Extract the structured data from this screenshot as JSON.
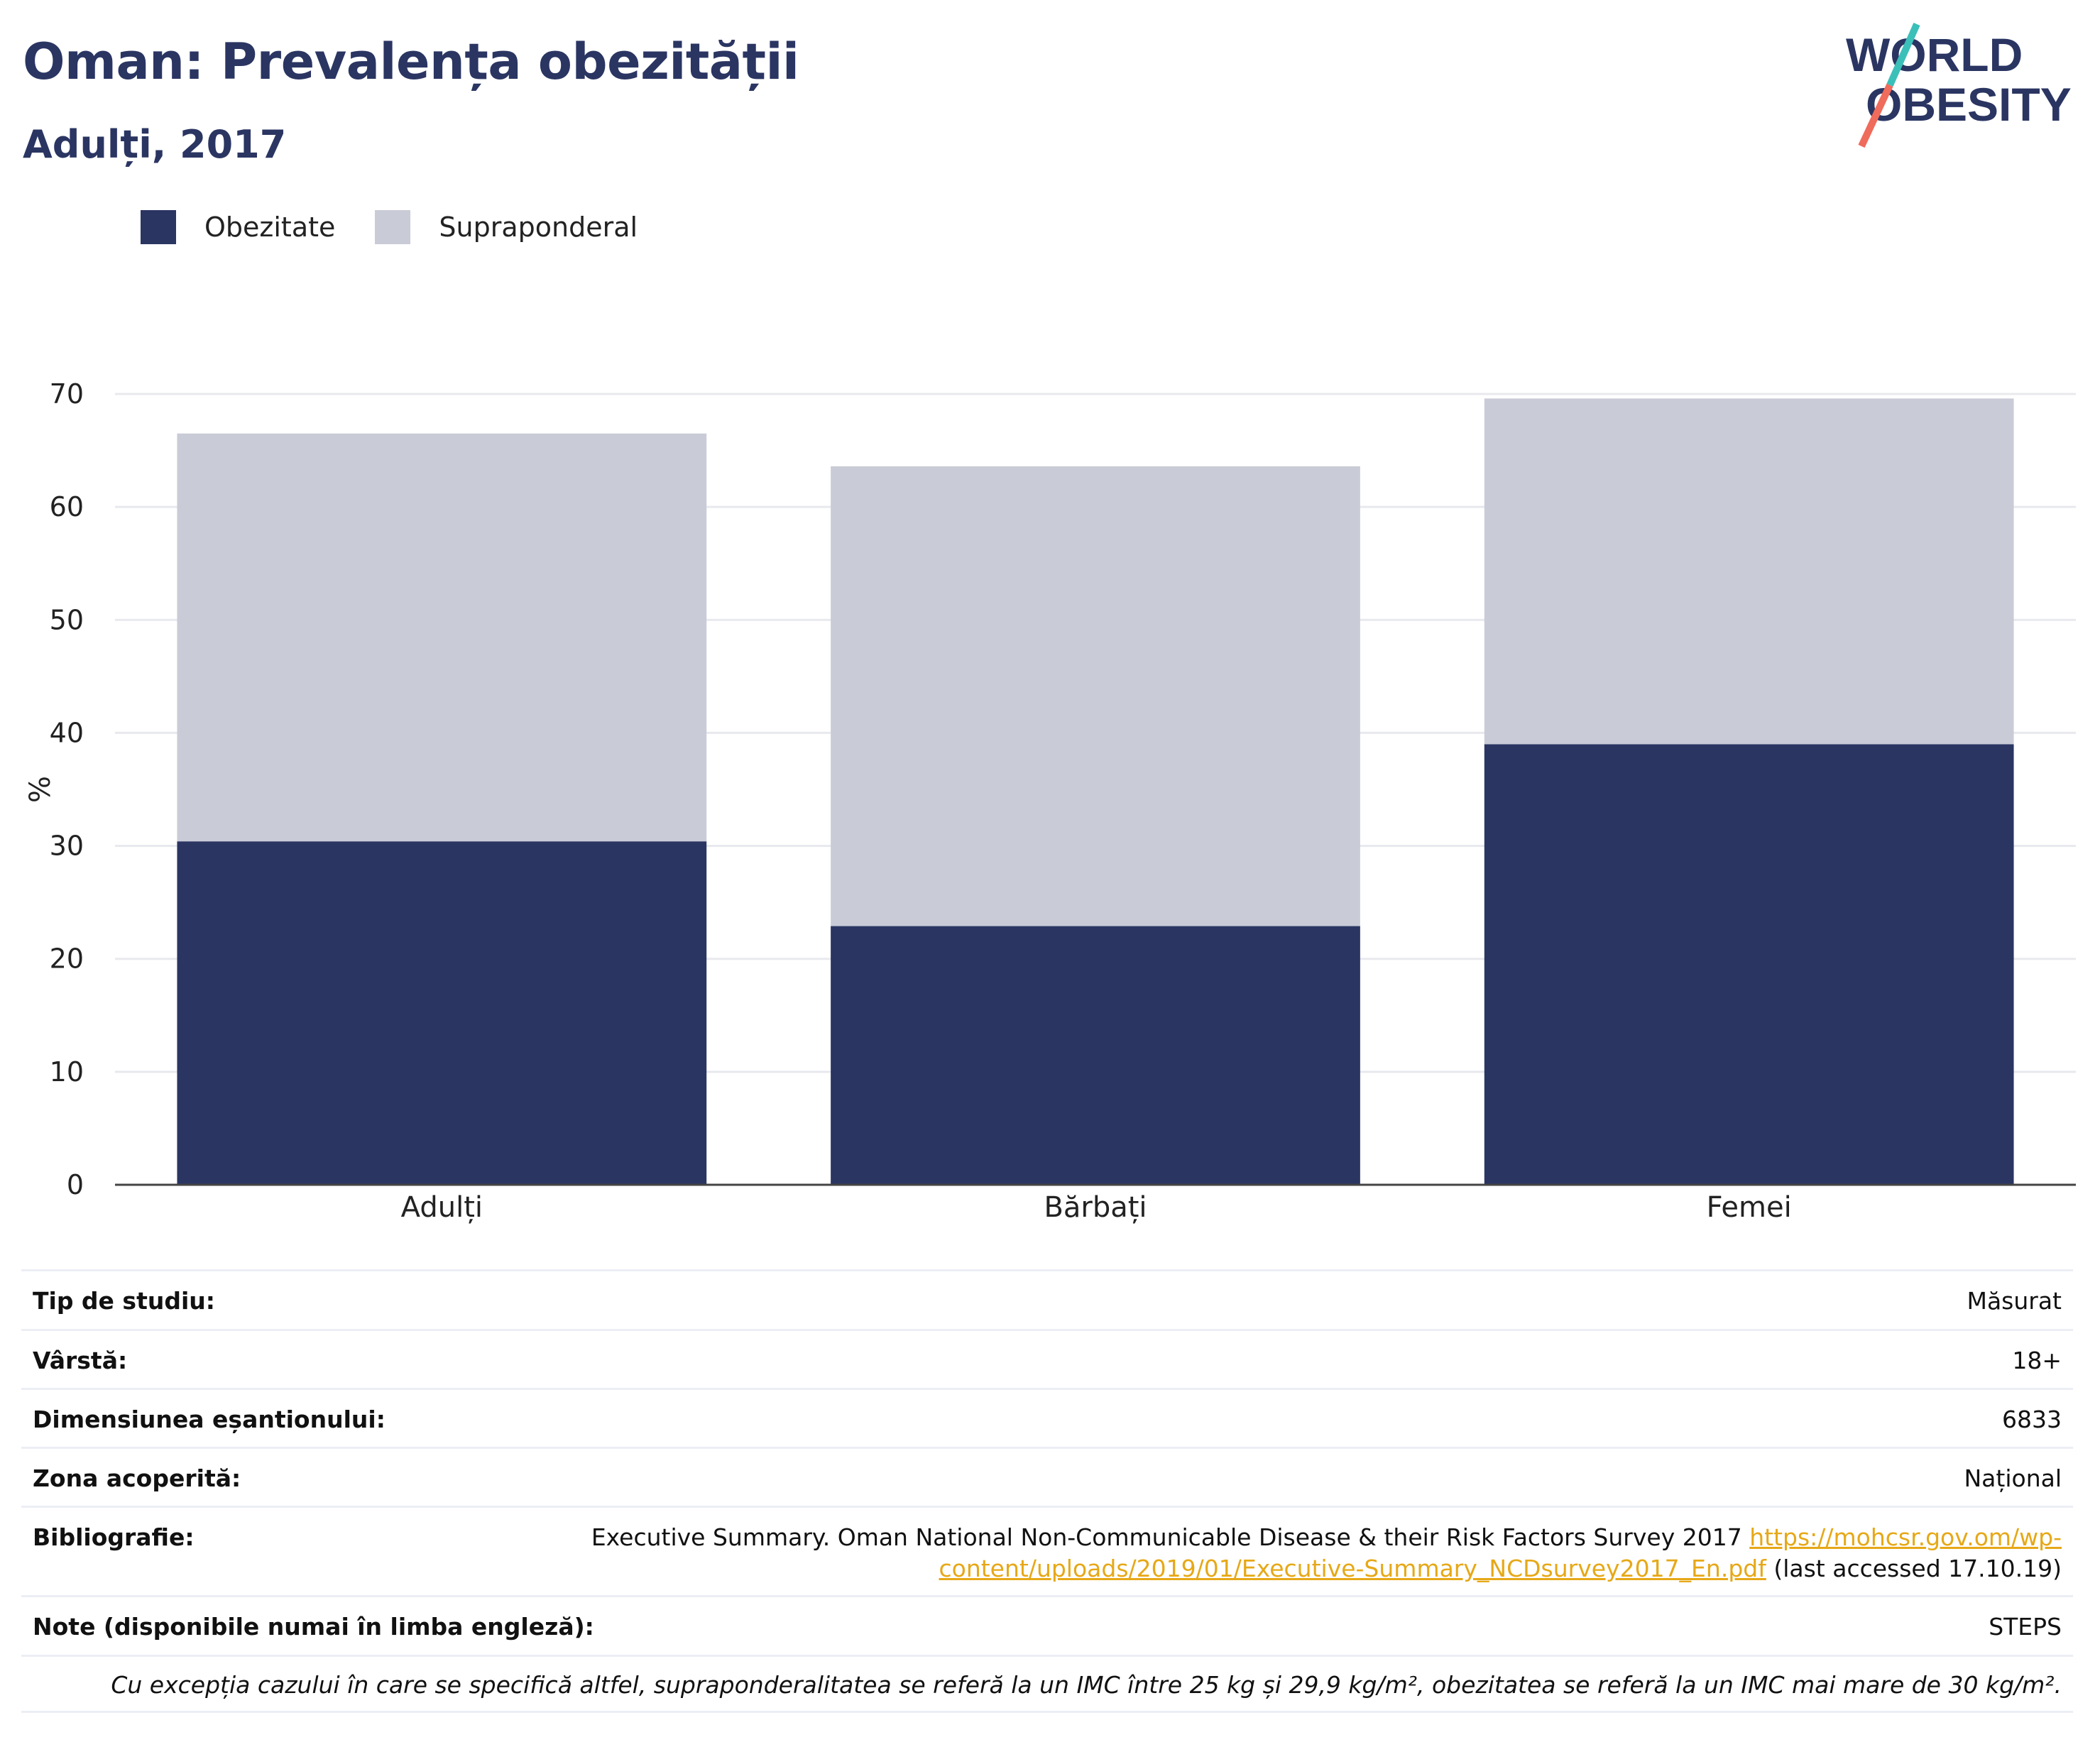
{
  "header": {
    "title": "Oman: Prevalența obezității",
    "subtitle": "Adulți, 2017"
  },
  "logo": {
    "line1": "WORLD",
    "line2": "OBESITY"
  },
  "legend": [
    {
      "label": "Obezitate",
      "color": "#2a3562"
    },
    {
      "label": "Supraponderal",
      "color": "#c9cbd7"
    }
  ],
  "chart_data": {
    "type": "bar",
    "stacked": true,
    "categories": [
      "Adulți",
      "Bărbați",
      "Femei"
    ],
    "series": [
      {
        "name": "Obezitate",
        "values": [
          30.4,
          22.9,
          39.0
        ],
        "color": "#2a3562"
      },
      {
        "name": "Supraponderal",
        "values": [
          36.1,
          40.7,
          30.6
        ],
        "color": "#c9cbd7"
      }
    ],
    "ylabel": "%",
    "ylim": [
      0,
      70
    ],
    "yticks": [
      0,
      10,
      20,
      30,
      40,
      50,
      60,
      70
    ],
    "grid": true,
    "legend_position": "top-left"
  },
  "info": {
    "study_type": {
      "label": "Tip de studiu:",
      "value": "Măsurat"
    },
    "age": {
      "label": "Vârstă:",
      "value": "18+"
    },
    "sample_size": {
      "label": "Dimensiunea eșantionului:",
      "value": "6833"
    },
    "area": {
      "label": "Zona acoperită:",
      "value": "Național"
    },
    "bibliography": {
      "label": "Bibliografie:",
      "text": "Executive Summary. Oman National Non-Communicable Disease & their Risk Factors Survey 2017",
      "link_part1": "https://mohcsr.gov.om/wp-",
      "link_part2": "content/uploads/2019/01/Executive-Summary_NCDsurvey2017_En.pdf",
      "suffix": "(last accessed 17.10.19)"
    },
    "notes": {
      "label": "Note (disponibile numai în limba engleză):",
      "value": "STEPS"
    },
    "footnote": "Cu excepția cazului în care se specifică altfel, supraponderalitatea se referă la un IMC între 25 kg și 29,9 kg/m², obezitatea se referă la un IMC mai mare de 30 kg/m²."
  }
}
